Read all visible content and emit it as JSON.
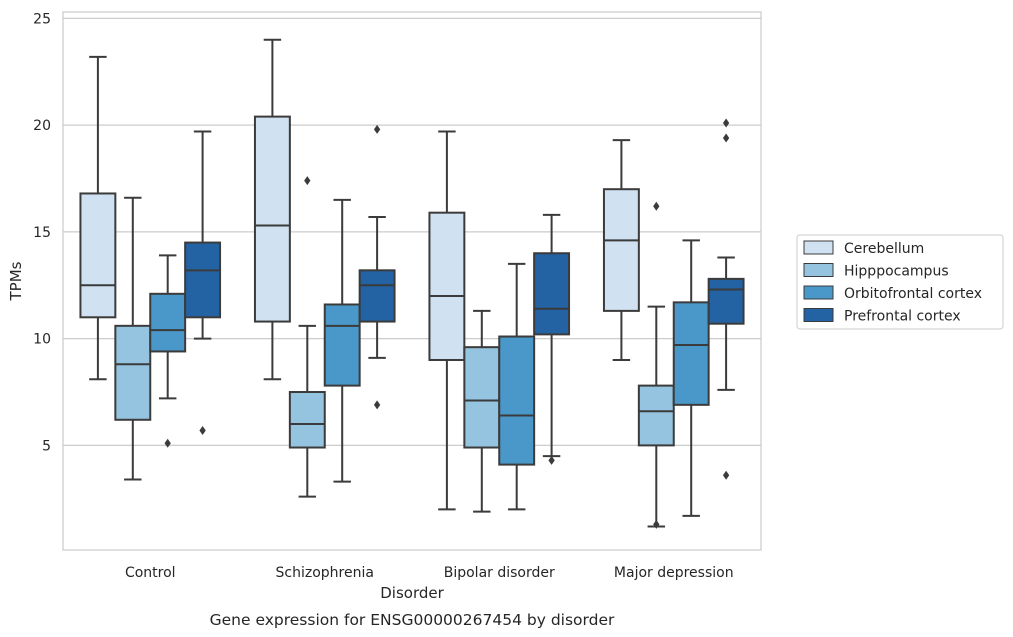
{
  "chart_data": {
    "type": "box",
    "title": "Gene expression for ENSG00000267454 by disorder",
    "xlabel": "Disorder",
    "ylabel": "TPMs",
    "ylim": [
      0.1,
      25.3
    ],
    "yticks": [
      5,
      10,
      15,
      20,
      25
    ],
    "grid": "horizontal",
    "legend_position": "right",
    "categories": [
      "Control",
      "Schizophrenia",
      "Bipolar disorder",
      "Major depression"
    ],
    "series": [
      {
        "name": "Cerebellum",
        "color": "#d0e1f2",
        "boxes": [
          {
            "whislo": 8.1,
            "q1": 11.0,
            "med": 12.5,
            "q3": 16.8,
            "whishi": 23.2,
            "fliers": []
          },
          {
            "whislo": 8.1,
            "q1": 10.8,
            "med": 15.3,
            "q3": 20.4,
            "whishi": 24.0,
            "fliers": []
          },
          {
            "whislo": 2.0,
            "q1": 9.0,
            "med": 12.0,
            "q3": 15.9,
            "whishi": 19.7,
            "fliers": []
          },
          {
            "whislo": 9.0,
            "q1": 11.3,
            "med": 14.6,
            "q3": 17.0,
            "whishi": 19.3,
            "fliers": []
          }
        ]
      },
      {
        "name": "Hipppocampus",
        "color": "#94c4df",
        "boxes": [
          {
            "whislo": 3.4,
            "q1": 6.2,
            "med": 8.8,
            "q3": 10.6,
            "whishi": 16.6,
            "fliers": []
          },
          {
            "whislo": 2.6,
            "q1": 4.9,
            "med": 6.0,
            "q3": 7.5,
            "whishi": 10.6,
            "fliers": [
              17.4
            ]
          },
          {
            "whislo": 1.9,
            "q1": 4.9,
            "med": 7.1,
            "q3": 9.6,
            "whishi": 11.3,
            "fliers": []
          },
          {
            "whislo": 1.2,
            "q1": 5.0,
            "med": 6.6,
            "q3": 7.8,
            "whishi": 11.5,
            "fliers": [
              1.3,
              16.2
            ]
          }
        ]
      },
      {
        "name": "Orbitofrontal cortex",
        "color": "#4a98c9",
        "boxes": [
          {
            "whislo": 7.2,
            "q1": 9.4,
            "med": 10.4,
            "q3": 12.1,
            "whishi": 13.9,
            "fliers": [
              5.1
            ]
          },
          {
            "whislo": 3.3,
            "q1": 7.8,
            "med": 10.6,
            "q3": 11.6,
            "whishi": 16.5,
            "fliers": []
          },
          {
            "whislo": 2.0,
            "q1": 4.1,
            "med": 6.4,
            "q3": 10.1,
            "whishi": 13.5,
            "fliers": []
          },
          {
            "whislo": 1.7,
            "q1": 6.9,
            "med": 9.7,
            "q3": 11.7,
            "whishi": 14.6,
            "fliers": []
          }
        ]
      },
      {
        "name": "Prefrontal cortex",
        "color": "#2362a3",
        "boxes": [
          {
            "whislo": 10.0,
            "q1": 11.0,
            "med": 13.2,
            "q3": 14.5,
            "whishi": 19.7,
            "fliers": [
              5.7
            ]
          },
          {
            "whislo": 9.1,
            "q1": 10.8,
            "med": 12.5,
            "q3": 13.2,
            "whishi": 15.7,
            "fliers": [
              6.9,
              19.8
            ]
          },
          {
            "whislo": 4.5,
            "q1": 10.2,
            "med": 11.4,
            "q3": 14.0,
            "whishi": 15.8,
            "fliers": [
              4.3
            ]
          },
          {
            "whislo": 7.6,
            "q1": 10.7,
            "med": 12.3,
            "q3": 12.8,
            "whishi": 13.8,
            "fliers": [
              3.6,
              19.4,
              20.1
            ]
          }
        ]
      }
    ]
  }
}
